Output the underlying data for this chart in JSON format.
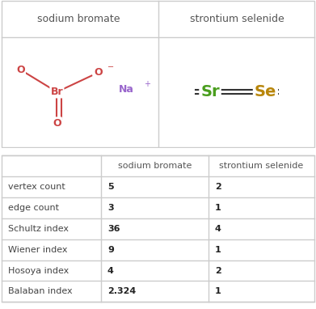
{
  "col_headers": [
    "",
    "sodium bromate",
    "strontium selenide"
  ],
  "rows": [
    [
      "vertex count",
      "5",
      "2"
    ],
    [
      "edge count",
      "3",
      "1"
    ],
    [
      "Schultz index",
      "36",
      "4"
    ],
    [
      "Wiener index",
      "9",
      "1"
    ],
    [
      "Hosoya index",
      "4",
      "2"
    ],
    [
      "Balaban index",
      "2.324",
      "1"
    ]
  ],
  "top_headers": [
    "sodium bromate",
    "strontium selenide"
  ],
  "background_color": "#ffffff",
  "header_text_color": "#555555",
  "cell_text_color": "#444444",
  "bold_values_color": "#222222",
  "grid_color": "#cccccc",
  "fig_width": 3.91,
  "fig_height": 3.82,
  "molecule1_label": "sodium bromate",
  "molecule2_label": "strontium selenide",
  "sr_color": "#4a9e1e",
  "se_color": "#b8860b",
  "br_color": "#cc4444",
  "o_color": "#cc4444",
  "na_color": "#9966cc"
}
